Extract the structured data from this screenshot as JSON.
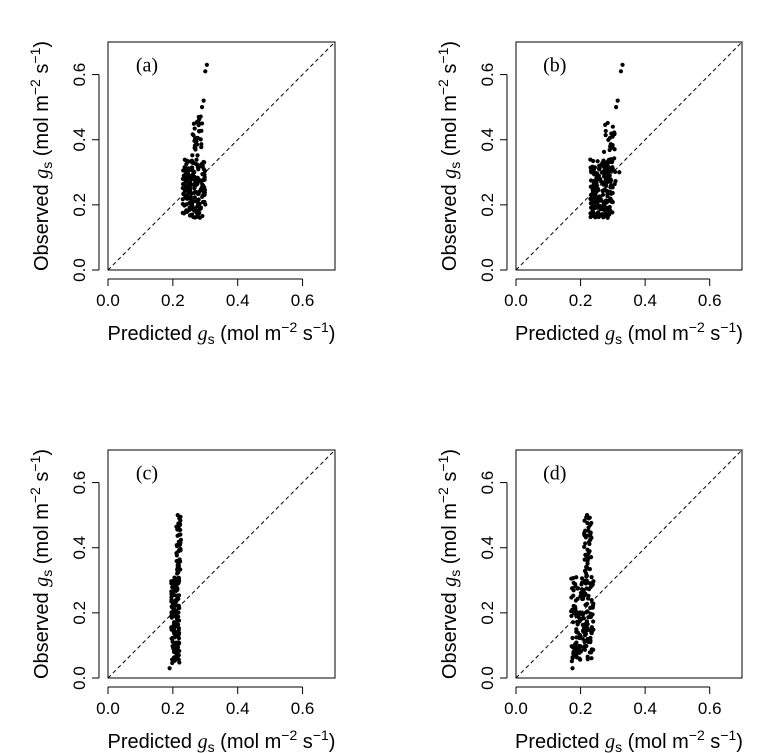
{
  "chart_data": [
    {
      "type": "scatter",
      "panel_label": "(a)",
      "xlabel_prefix": "Predicted",
      "ylabel_prefix": "Observed",
      "symbol": "g",
      "subscript": "s",
      "unit_open": "(mol m",
      "exp1": "−2",
      "unit_mid": " s",
      "exp2": "−1",
      "unit_close": ")",
      "xlim": [
        0,
        0.7
      ],
      "ylim": [
        0,
        0.7
      ],
      "xticks": [
        "0.0",
        "0.2",
        "0.4",
        "0.6"
      ],
      "yticks": [
        "0.0",
        "0.2",
        "0.4",
        "0.6"
      ],
      "reference_line": "1:1",
      "clusters": [
        {
          "x": [
            0.23,
            0.3
          ],
          "y": [
            0.16,
            0.34
          ],
          "n": 180
        },
        {
          "x": [
            0.26,
            0.29
          ],
          "y": [
            0.34,
            0.48
          ],
          "n": 30
        }
      ],
      "points": [
        [
          0.29,
          0.5
        ],
        [
          0.295,
          0.52
        ],
        [
          0.3,
          0.61
        ],
        [
          0.305,
          0.63
        ],
        [
          0.29,
          0.45
        ],
        [
          0.28,
          0.47
        ]
      ]
    },
    {
      "type": "scatter",
      "panel_label": "(b)",
      "xlabel_prefix": "Predicted",
      "ylabel_prefix": "Observed",
      "symbol": "g",
      "subscript": "s",
      "unit_open": "(mol m",
      "exp1": "−2",
      "unit_mid": " s",
      "exp2": "−1",
      "unit_close": ")",
      "xlim": [
        0,
        0.7
      ],
      "ylim": [
        0,
        0.7
      ],
      "xticks": [
        "0.0",
        "0.2",
        "0.4",
        "0.6"
      ],
      "yticks": [
        "0.0",
        "0.2",
        "0.4",
        "0.6"
      ],
      "reference_line": "1:1",
      "clusters": [
        {
          "x": [
            0.23,
            0.3
          ],
          "y": [
            0.16,
            0.34
          ],
          "n": 200
        },
        {
          "x": [
            0.27,
            0.31
          ],
          "y": [
            0.26,
            0.46
          ],
          "n": 35
        }
      ],
      "points": [
        [
          0.31,
          0.5
        ],
        [
          0.315,
          0.52
        ],
        [
          0.325,
          0.61
        ],
        [
          0.33,
          0.63
        ],
        [
          0.3,
          0.44
        ],
        [
          0.32,
          0.3
        ]
      ]
    },
    {
      "type": "scatter",
      "panel_label": "(c)",
      "xlabel_prefix": "Predicted",
      "ylabel_prefix": "Observed",
      "symbol": "g",
      "subscript": "s",
      "unit_open": "(mol m",
      "exp1": "−2",
      "unit_mid": " s",
      "exp2": "−1",
      "unit_close": ")",
      "xlim": [
        0,
        0.7
      ],
      "ylim": [
        0,
        0.7
      ],
      "xticks": [
        "0.0",
        "0.2",
        "0.4",
        "0.6"
      ],
      "yticks": [
        "0.0",
        "0.2",
        "0.4",
        "0.6"
      ],
      "reference_line": "1:1",
      "clusters": [
        {
          "x": [
            0.195,
            0.22
          ],
          "y": [
            0.04,
            0.31
          ],
          "n": 160
        },
        {
          "x": [
            0.21,
            0.225
          ],
          "y": [
            0.31,
            0.5
          ],
          "n": 40
        }
      ],
      "points": [
        [
          0.19,
          0.03
        ],
        [
          0.215,
          0.5
        ],
        [
          0.22,
          0.49
        ]
      ]
    },
    {
      "type": "scatter",
      "panel_label": "(d)",
      "xlabel_prefix": "Predicted",
      "ylabel_prefix": "Observed",
      "symbol": "g",
      "subscript": "s",
      "unit_open": "(mol m",
      "exp1": "−2",
      "unit_mid": " s",
      "exp2": "−1",
      "unit_close": ")",
      "xlim": [
        0,
        0.7
      ],
      "ylim": [
        0,
        0.7
      ],
      "xticks": [
        "0.0",
        "0.2",
        "0.4",
        "0.6"
      ],
      "yticks": [
        "0.0",
        "0.2",
        "0.4",
        "0.6"
      ],
      "reference_line": "1:1",
      "clusters": [
        {
          "x": [
            0.17,
            0.24
          ],
          "y": [
            0.05,
            0.31
          ],
          "n": 170
        },
        {
          "x": [
            0.21,
            0.235
          ],
          "y": [
            0.31,
            0.5
          ],
          "n": 40
        }
      ],
      "points": [
        [
          0.175,
          0.03
        ],
        [
          0.22,
          0.5
        ],
        [
          0.225,
          0.49
        ],
        [
          0.23,
          0.47
        ]
      ]
    }
  ]
}
